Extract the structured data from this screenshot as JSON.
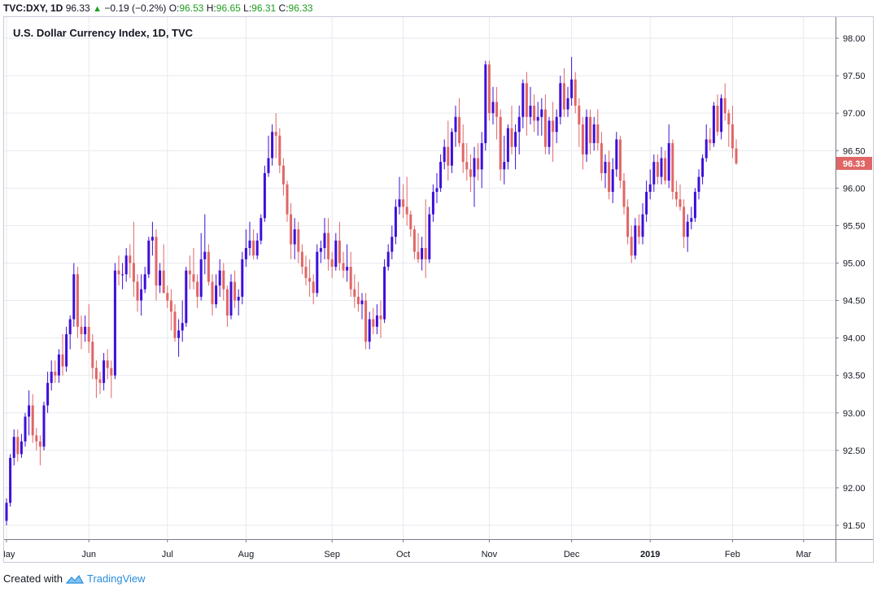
{
  "header": {
    "symbol": "TVC:DXY, 1D",
    "last": "96.33",
    "change": "−0.19 (−0.2%)",
    "o_label": "O:",
    "o_value": "96.53",
    "h_label": "H:",
    "h_value": "96.65",
    "l_label": "L:",
    "l_value": "96.31",
    "c_label": "C:",
    "c_value": "96.33"
  },
  "footer": {
    "created_with": "Created with",
    "brand": "TradingView"
  },
  "chart_data": {
    "type": "candlestick",
    "title": "U.S. Dollar Currency Index, 1D, TVC",
    "ylim": [
      91.2,
      98.05
    ],
    "y_ticks": [
      "91.50",
      "92.00",
      "92.50",
      "93.00",
      "93.50",
      "94.00",
      "94.50",
      "95.00",
      "95.50",
      "96.00",
      "96.50",
      "97.00",
      "97.50",
      "98.00"
    ],
    "y_tick_values": [
      91.5,
      92.0,
      92.5,
      93.0,
      93.5,
      94.0,
      94.5,
      95.0,
      95.5,
      96.0,
      96.5,
      97.0,
      97.5,
      98.0
    ],
    "x_ticks": [
      {
        "label": "May",
        "index": 0,
        "bold": false
      },
      {
        "label": "Jun",
        "index": 22,
        "bold": false
      },
      {
        "label": "Jul",
        "index": 43,
        "bold": false
      },
      {
        "label": "Aug",
        "index": 64,
        "bold": false
      },
      {
        "label": "Sep",
        "index": 87,
        "bold": false
      },
      {
        "label": "Oct",
        "index": 106,
        "bold": false
      },
      {
        "label": "Nov",
        "index": 129,
        "bold": false
      },
      {
        "label": "Dec",
        "index": 151,
        "bold": false
      },
      {
        "label": "2019",
        "index": 172,
        "bold": true
      },
      {
        "label": "Feb",
        "index": 194,
        "bold": false
      },
      {
        "label": "Mar",
        "index": 213,
        "bold": false
      }
    ],
    "last_price_label": "96.33",
    "last_price": 96.33,
    "grid": true,
    "up_color": "#3d0fd9",
    "down_color": "#e06666",
    "candles": [
      [
        91.56,
        91.86,
        91.5,
        91.8
      ],
      [
        91.8,
        92.45,
        91.75,
        92.4
      ],
      [
        92.4,
        92.78,
        92.3,
        92.68
      ],
      [
        92.68,
        92.78,
        92.35,
        92.45
      ],
      [
        92.45,
        92.72,
        92.4,
        92.62
      ],
      [
        92.62,
        93.0,
        92.55,
        92.95
      ],
      [
        92.95,
        93.3,
        92.7,
        93.1
      ],
      [
        93.1,
        93.25,
        92.6,
        92.7
      ],
      [
        92.7,
        92.8,
        92.5,
        92.62
      ],
      [
        92.62,
        92.7,
        92.3,
        92.55
      ],
      [
        92.55,
        93.15,
        92.5,
        93.1
      ],
      [
        93.1,
        93.55,
        93.0,
        93.4
      ],
      [
        93.4,
        93.7,
        93.3,
        93.55
      ],
      [
        93.55,
        93.7,
        93.4,
        93.5
      ],
      [
        93.5,
        93.85,
        93.4,
        93.78
      ],
      [
        93.78,
        94.05,
        93.5,
        93.62
      ],
      [
        93.62,
        94.15,
        93.55,
        94.05
      ],
      [
        94.05,
        94.3,
        93.85,
        94.25
      ],
      [
        94.25,
        95.0,
        94.15,
        94.85
      ],
      [
        94.85,
        94.95,
        94.0,
        94.15
      ],
      [
        94.15,
        94.3,
        93.85,
        94.05
      ],
      [
        94.05,
        94.3,
        93.95,
        94.15
      ],
      [
        94.15,
        94.45,
        93.8,
        93.95
      ],
      [
        93.95,
        94.05,
        93.45,
        93.6
      ],
      [
        93.6,
        93.7,
        93.2,
        93.45
      ],
      [
        93.45,
        93.55,
        93.25,
        93.4
      ],
      [
        93.4,
        93.8,
        93.3,
        93.7
      ],
      [
        93.7,
        93.85,
        93.45,
        93.6
      ],
      [
        93.6,
        93.7,
        93.2,
        93.5
      ],
      [
        93.5,
        95.0,
        93.45,
        94.9
      ],
      [
        94.9,
        95.1,
        94.7,
        94.85
      ],
      [
        94.85,
        95.0,
        94.65,
        94.85
      ],
      [
        94.85,
        95.2,
        94.75,
        95.1
      ],
      [
        95.1,
        95.25,
        94.8,
        95.0
      ],
      [
        95.0,
        95.55,
        94.55,
        94.75
      ],
      [
        94.75,
        94.85,
        94.35,
        94.5
      ],
      [
        94.5,
        94.85,
        94.3,
        94.65
      ],
      [
        94.65,
        94.95,
        94.6,
        94.85
      ],
      [
        94.85,
        95.35,
        94.8,
        95.3
      ],
      [
        95.3,
        95.55,
        95.1,
        95.35
      ],
      [
        95.35,
        95.45,
        94.5,
        94.7
      ],
      [
        94.7,
        95.0,
        94.6,
        94.9
      ],
      [
        94.9,
        95.25,
        94.6,
        94.6
      ],
      [
        94.6,
        94.7,
        94.4,
        94.5
      ],
      [
        94.5,
        94.65,
        94.1,
        94.35
      ],
      [
        94.35,
        94.45,
        93.95,
        94.0
      ],
      [
        94.0,
        94.25,
        93.75,
        94.1
      ],
      [
        94.1,
        94.5,
        93.95,
        94.2
      ],
      [
        94.2,
        94.95,
        94.15,
        94.9
      ],
      [
        94.9,
        95.1,
        94.65,
        94.85
      ],
      [
        94.85,
        95.2,
        94.65,
        94.75
      ],
      [
        94.75,
        94.85,
        94.4,
        94.55
      ],
      [
        94.55,
        95.4,
        94.5,
        95.05
      ],
      [
        95.05,
        95.65,
        94.85,
        95.15
      ],
      [
        95.15,
        95.25,
        94.7,
        94.75
      ],
      [
        94.75,
        94.85,
        94.3,
        94.45
      ],
      [
        94.45,
        94.85,
        94.4,
        94.7
      ],
      [
        94.7,
        95.05,
        94.55,
        94.9
      ],
      [
        94.9,
        95.0,
        94.5,
        94.65
      ],
      [
        94.65,
        94.7,
        94.15,
        94.3
      ],
      [
        94.3,
        94.85,
        94.25,
        94.75
      ],
      [
        94.75,
        94.9,
        94.4,
        94.5
      ],
      [
        94.5,
        94.65,
        94.3,
        94.55
      ],
      [
        94.55,
        95.15,
        94.45,
        95.05
      ],
      [
        95.05,
        95.45,
        94.95,
        95.2
      ],
      [
        95.2,
        95.55,
        95.1,
        95.3
      ],
      [
        95.3,
        95.45,
        95.05,
        95.1
      ],
      [
        95.1,
        95.4,
        95.05,
        95.3
      ],
      [
        95.3,
        95.65,
        95.25,
        95.6
      ],
      [
        95.6,
        96.3,
        95.55,
        96.2
      ],
      [
        96.2,
        96.7,
        96.15,
        96.4
      ],
      [
        96.4,
        96.85,
        96.3,
        96.75
      ],
      [
        96.75,
        97.0,
        96.4,
        96.7
      ],
      [
        96.7,
        96.8,
        96.2,
        96.3
      ],
      [
        96.3,
        96.4,
        95.9,
        96.05
      ],
      [
        96.05,
        96.1,
        95.55,
        95.65
      ],
      [
        95.65,
        95.8,
        95.05,
        95.25
      ],
      [
        95.25,
        95.6,
        95.05,
        95.45
      ],
      [
        95.45,
        95.55,
        95.0,
        95.15
      ],
      [
        95.15,
        95.25,
        94.85,
        94.95
      ],
      [
        94.95,
        95.1,
        94.7,
        94.8
      ],
      [
        94.8,
        95.05,
        94.55,
        94.75
      ],
      [
        94.75,
        94.85,
        94.45,
        94.6
      ],
      [
        94.6,
        95.25,
        94.55,
        95.15
      ],
      [
        95.15,
        95.3,
        95.0,
        95.2
      ],
      [
        95.2,
        95.6,
        95.05,
        95.4
      ],
      [
        95.4,
        95.6,
        94.9,
        95.05
      ],
      [
        95.05,
        95.15,
        94.8,
        94.95
      ],
      [
        94.95,
        95.4,
        94.9,
        95.3
      ],
      [
        95.3,
        95.55,
        94.9,
        95.0
      ],
      [
        95.0,
        95.15,
        94.8,
        94.9
      ],
      [
        94.9,
        95.25,
        94.75,
        94.95
      ],
      [
        94.95,
        95.15,
        94.55,
        94.65
      ],
      [
        94.65,
        94.85,
        94.4,
        94.55
      ],
      [
        94.55,
        94.75,
        94.35,
        94.45
      ],
      [
        94.45,
        94.6,
        94.25,
        94.5
      ],
      [
        94.5,
        94.6,
        93.85,
        93.95
      ],
      [
        93.95,
        94.35,
        93.85,
        94.25
      ],
      [
        94.25,
        94.4,
        94.05,
        94.15
      ],
      [
        94.15,
        94.45,
        94.05,
        94.3
      ],
      [
        94.3,
        94.5,
        94.0,
        94.25
      ],
      [
        94.25,
        95.05,
        94.2,
        94.95
      ],
      [
        94.95,
        95.25,
        94.9,
        95.15
      ],
      [
        95.15,
        95.5,
        95.05,
        95.35
      ],
      [
        95.35,
        95.85,
        95.25,
        95.75
      ],
      [
        95.75,
        96.15,
        95.65,
        95.85
      ],
      [
        95.85,
        96.05,
        95.6,
        95.75
      ],
      [
        95.75,
        96.15,
        95.5,
        95.65
      ],
      [
        95.65,
        95.7,
        95.35,
        95.45
      ],
      [
        95.45,
        95.5,
        95.05,
        95.15
      ],
      [
        95.15,
        95.4,
        95.0,
        95.05
      ],
      [
        95.05,
        95.35,
        94.9,
        95.2
      ],
      [
        95.2,
        95.85,
        94.8,
        95.05
      ],
      [
        95.05,
        95.75,
        95.0,
        95.65
      ],
      [
        95.65,
        96.05,
        95.55,
        95.95
      ],
      [
        95.95,
        96.2,
        95.8,
        96.0
      ],
      [
        96.0,
        96.45,
        95.95,
        96.35
      ],
      [
        96.35,
        96.65,
        96.25,
        96.55
      ],
      [
        96.55,
        96.9,
        96.1,
        96.3
      ],
      [
        96.3,
        96.8,
        96.2,
        96.75
      ],
      [
        96.75,
        97.1,
        96.55,
        96.95
      ],
      [
        96.95,
        97.2,
        96.55,
        96.6
      ],
      [
        96.6,
        96.85,
        96.2,
        96.35
      ],
      [
        96.35,
        96.6,
        96.1,
        96.25
      ],
      [
        96.25,
        96.45,
        95.95,
        96.15
      ],
      [
        96.15,
        96.55,
        95.75,
        96.4
      ],
      [
        96.4,
        96.6,
        96.1,
        96.25
      ],
      [
        96.25,
        96.75,
        96.0,
        96.6
      ],
      [
        96.6,
        97.7,
        96.5,
        97.65
      ],
      [
        97.65,
        97.7,
        96.9,
        97.0
      ],
      [
        97.0,
        97.35,
        96.85,
        97.15
      ],
      [
        97.15,
        97.35,
        96.65,
        96.95
      ],
      [
        96.95,
        97.05,
        96.1,
        96.25
      ],
      [
        96.25,
        96.7,
        96.05,
        96.35
      ],
      [
        96.35,
        96.85,
        96.25,
        96.8
      ],
      [
        96.8,
        97.1,
        96.45,
        96.55
      ],
      [
        96.55,
        96.85,
        96.25,
        96.75
      ],
      [
        96.75,
        97.1,
        96.45,
        96.95
      ],
      [
        96.95,
        97.45,
        96.8,
        97.4
      ],
      [
        97.4,
        97.55,
        96.7,
        96.95
      ],
      [
        96.95,
        97.35,
        96.85,
        97.1
      ],
      [
        97.1,
        97.25,
        96.75,
        96.9
      ],
      [
        96.9,
        97.15,
        96.7,
        96.95
      ],
      [
        96.95,
        97.2,
        96.7,
        97.05
      ],
      [
        97.05,
        97.25,
        96.45,
        96.55
      ],
      [
        96.55,
        96.95,
        96.45,
        96.9
      ],
      [
        96.9,
        97.15,
        96.35,
        96.75
      ],
      [
        96.75,
        97.05,
        96.6,
        96.95
      ],
      [
        96.95,
        97.5,
        96.85,
        97.4
      ],
      [
        97.4,
        97.6,
        96.95,
        97.05
      ],
      [
        97.05,
        97.35,
        96.95,
        97.2
      ],
      [
        97.2,
        97.75,
        97.1,
        97.45
      ],
      [
        97.45,
        97.55,
        97.0,
        97.1
      ],
      [
        97.1,
        97.2,
        96.55,
        96.85
      ],
      [
        96.85,
        96.95,
        96.25,
        96.45
      ],
      [
        96.45,
        97.05,
        96.35,
        96.95
      ],
      [
        96.95,
        97.05,
        96.45,
        96.6
      ],
      [
        96.6,
        96.95,
        96.5,
        96.85
      ],
      [
        96.85,
        97.05,
        96.5,
        96.6
      ],
      [
        96.6,
        96.75,
        96.1,
        96.2
      ],
      [
        96.2,
        96.45,
        96.0,
        96.35
      ],
      [
        96.35,
        96.5,
        95.85,
        95.95
      ],
      [
        95.95,
        96.4,
        95.8,
        96.25
      ],
      [
        96.25,
        96.75,
        96.15,
        96.65
      ],
      [
        96.65,
        96.7,
        96.0,
        96.1
      ],
      [
        96.1,
        96.2,
        95.65,
        95.75
      ],
      [
        95.75,
        95.85,
        95.25,
        95.35
      ],
      [
        95.35,
        95.5,
        95.0,
        95.1
      ],
      [
        95.1,
        95.6,
        95.05,
        95.5
      ],
      [
        95.5,
        95.65,
        95.25,
        95.35
      ],
      [
        95.35,
        95.8,
        95.25,
        95.65
      ],
      [
        95.65,
        96.1,
        95.55,
        95.95
      ],
      [
        95.95,
        96.25,
        95.85,
        96.05
      ],
      [
        96.05,
        96.45,
        95.95,
        96.35
      ],
      [
        96.35,
        96.45,
        96.05,
        96.15
      ],
      [
        96.15,
        96.55,
        96.05,
        96.4
      ],
      [
        96.4,
        96.5,
        96.05,
        96.1
      ],
      [
        96.1,
        96.85,
        96.0,
        96.6
      ],
      [
        96.6,
        96.65,
        95.85,
        95.95
      ],
      [
        95.95,
        96.1,
        95.75,
        95.85
      ],
      [
        95.85,
        96.05,
        95.7,
        95.75
      ],
      [
        95.75,
        95.85,
        95.2,
        95.35
      ],
      [
        95.35,
        95.65,
        95.15,
        95.55
      ],
      [
        95.55,
        95.75,
        95.45,
        95.6
      ],
      [
        95.6,
        96.0,
        95.55,
        95.95
      ],
      [
        95.95,
        96.25,
        95.85,
        96.15
      ],
      [
        96.15,
        96.45,
        96.05,
        96.4
      ],
      [
        96.4,
        96.85,
        96.35,
        96.65
      ],
      [
        96.65,
        96.8,
        96.5,
        96.6
      ],
      [
        96.6,
        97.15,
        96.55,
        97.1
      ],
      [
        97.1,
        97.25,
        96.7,
        96.75
      ],
      [
        96.75,
        97.25,
        96.65,
        97.2
      ],
      [
        97.2,
        97.4,
        96.9,
        97.0
      ],
      [
        97.0,
        97.05,
        96.55,
        96.85
      ],
      [
        96.85,
        97.1,
        96.4,
        96.53
      ],
      [
        96.53,
        96.65,
        96.31,
        96.33
      ]
    ]
  }
}
